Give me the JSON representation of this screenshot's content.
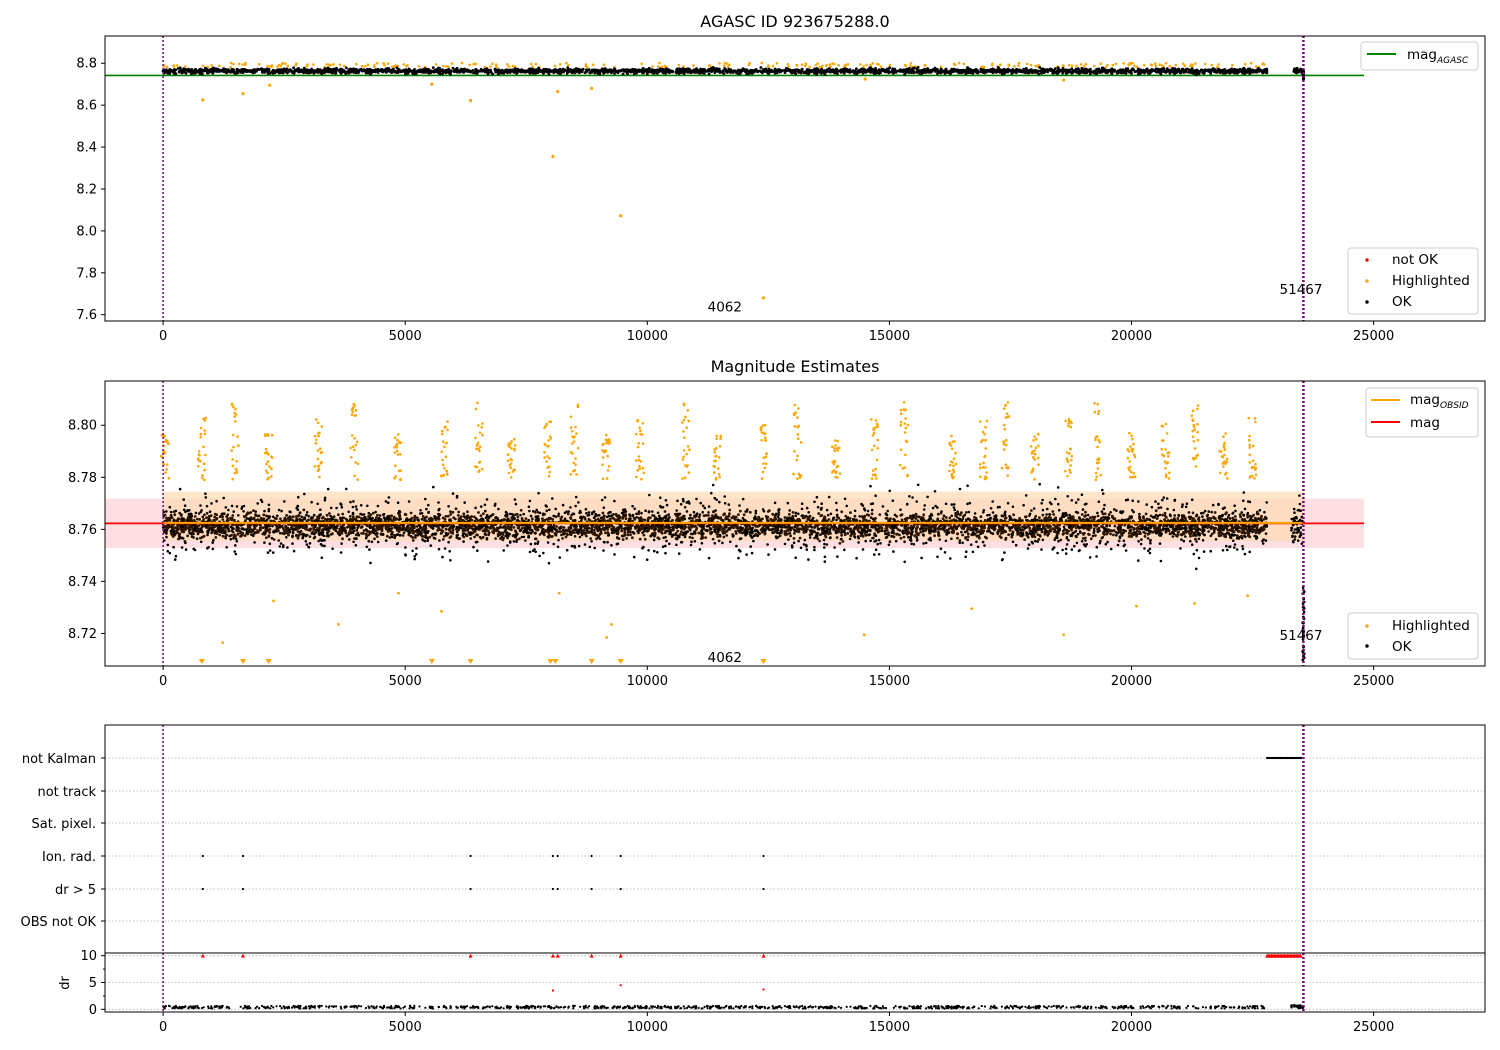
{
  "colors": {
    "ok": "#000000",
    "highlighted": "#ffa500",
    "not_ok": "#ff0000",
    "mag_agasc_line": "#008000",
    "mag_obsid_line": "#ffa500",
    "mag_line": "#ff0000",
    "vline": "#800080",
    "band_obsid": "#ffdcb4",
    "band_mag": "#ffd7dc"
  },
  "chart_data": [
    {
      "type": "scatter",
      "title": "AGASC ID 923675288.0",
      "xlim": [
        -1200,
        27300
      ],
      "ylim": [
        7.57,
        8.93
      ],
      "xticks": [
        0,
        5000,
        10000,
        15000,
        20000,
        25000
      ],
      "yticks": [
        7.6,
        7.8,
        8.0,
        8.2,
        8.4,
        8.6,
        8.8
      ],
      "x_tick_labels": [
        "0",
        "5000",
        "10000",
        "15000",
        "20000",
        "25000"
      ],
      "y_tick_labels": [
        "7.6",
        "7.8",
        "8.0",
        "8.2",
        "8.4",
        "8.6",
        "8.8"
      ],
      "reference_line": {
        "name": "mag",
        "subscript": "AGASC",
        "value": 8.742,
        "x_range": [
          -1200,
          24800
        ]
      },
      "vlines": [
        0,
        23550
      ],
      "annotations": [
        {
          "text": "4062",
          "x": 11600,
          "y": 7.6
        },
        {
          "text": "51467",
          "x": 23500,
          "y": 7.7
        }
      ],
      "legend_upper": {
        "placement": "upper-right",
        "entries": [
          "mag"
        ]
      },
      "legend_lower": {
        "placement": "lower-right",
        "entries": [
          "not OK",
          "Highlighted",
          "OK"
        ]
      },
      "ok_band": {
        "center": 8.763,
        "spread": 0.012,
        "x_ranges": [
          [
            0,
            22800
          ],
          [
            22800,
            23550
          ]
        ]
      },
      "highlighted_points": [
        {
          "x": 820,
          "y": 8.625
        },
        {
          "x": 1650,
          "y": 8.655
        },
        {
          "x": 2200,
          "y": 8.695
        },
        {
          "x": 5550,
          "y": 8.7
        },
        {
          "x": 6350,
          "y": 8.622
        },
        {
          "x": 8050,
          "y": 8.355
        },
        {
          "x": 8150,
          "y": 8.665
        },
        {
          "x": 8850,
          "y": 8.68
        },
        {
          "x": 9450,
          "y": 8.072
        },
        {
          "x": 12400,
          "y": 7.68
        },
        {
          "x": 14500,
          "y": 8.725
        },
        {
          "x": 18600,
          "y": 8.72
        }
      ]
    },
    {
      "type": "scatter",
      "title": "Magnitude Estimates",
      "xlim": [
        -1200,
        27300
      ],
      "ylim": [
        8.7075,
        8.817
      ],
      "xticks": [
        0,
        5000,
        10000,
        15000,
        20000,
        25000
      ],
      "yticks": [
        8.72,
        8.74,
        8.76,
        8.78,
        8.8
      ],
      "x_tick_labels": [
        "0",
        "5000",
        "10000",
        "15000",
        "20000",
        "25000"
      ],
      "y_tick_labels": [
        "8.72",
        "8.74",
        "8.76",
        "8.78",
        "8.80"
      ],
      "mag_obsid": {
        "name": "mag",
        "subscript": "OBSID",
        "value": 8.7625,
        "band": [
          8.7555,
          8.7745
        ],
        "x_range": [
          0,
          23550
        ]
      },
      "mag": {
        "name": "mag",
        "value": 8.7623,
        "band": [
          8.7528,
          8.7718
        ],
        "x_range": [
          -1200,
          24800
        ]
      },
      "vlines": [
        0,
        23550
      ],
      "annotations": [
        {
          "text": "4062",
          "x": 11600,
          "y": 8.711
        },
        {
          "text": "51467",
          "x": 23500,
          "y": 8.7195
        }
      ],
      "legend_upper": {
        "placement": "upper-right",
        "entries": [
          "mag",
          "mag"
        ]
      },
      "legend_lower": {
        "placement": "lower-right",
        "entries": [
          "Highlighted",
          "OK"
        ]
      },
      "ok_band": {
        "center": 8.7615,
        "core_spread": 0.0045,
        "outer_spread": 0.011,
        "x_ranges": [
          [
            0,
            22800
          ],
          [
            22800,
            23550
          ]
        ]
      },
      "highlighted_peaks_x": [
        40,
        800,
        1480,
        2180,
        3200,
        3950,
        4850,
        5800,
        6520,
        7200,
        7950,
        8500,
        9150,
        9850,
        10800,
        11450,
        12400,
        13100,
        13900,
        14700,
        15300,
        16300,
        16950,
        17400,
        18000,
        18700,
        19300,
        20000,
        20700,
        21300,
        21900,
        22500
      ],
      "highlighted_low_points": [
        {
          "x": 1230,
          "y": 8.7165
        },
        {
          "x": 2280,
          "y": 8.7325
        },
        {
          "x": 3620,
          "y": 8.7235
        },
        {
          "x": 4860,
          "y": 8.7355
        },
        {
          "x": 5750,
          "y": 8.7285
        },
        {
          "x": 8180,
          "y": 8.7355
        },
        {
          "x": 9160,
          "y": 8.7185
        },
        {
          "x": 9260,
          "y": 8.7235
        },
        {
          "x": 14480,
          "y": 8.7195
        },
        {
          "x": 16700,
          "y": 8.7295
        },
        {
          "x": 18600,
          "y": 8.7195
        },
        {
          "x": 20100,
          "y": 8.7305
        },
        {
          "x": 21300,
          "y": 8.7315
        },
        {
          "x": 22400,
          "y": 8.7345
        }
      ],
      "off_scale_markers_x": [
        800,
        1650,
        2180,
        5550,
        6350,
        8000,
        8100,
        8850,
        9450,
        12400
      ]
    },
    {
      "type": "scatter",
      "title": "",
      "xlim": [
        -1200,
        27300
      ],
      "xticks": [
        0,
        5000,
        10000,
        15000,
        20000,
        25000
      ],
      "x_tick_labels": [
        "0",
        "5000",
        "10000",
        "15000",
        "20000",
        "25000"
      ],
      "category_rows": [
        "not Kalman",
        "not track",
        "Sat. pixel.",
        "Ion. rad.",
        "dr > 5",
        "OBS not OK"
      ],
      "flag_points": {
        "not Kalman": {
          "x_range": [
            22800,
            23500
          ]
        },
        "Ion. rad.": {
          "x": [
            820,
            1650,
            6350,
            8050,
            8150,
            8850,
            9450,
            12400
          ]
        },
        "dr > 5": {
          "x": [
            820,
            1650,
            6350,
            8050,
            8150,
            8850,
            9450,
            12400
          ]
        }
      },
      "dr_panel": {
        "ylabel": "dr",
        "ylim": [
          -0.5,
          10.5
        ],
        "yticks": [
          0,
          5,
          10
        ],
        "y_tick_labels": [
          "0",
          "5",
          "10"
        ],
        "capped_points_x": [
          820,
          1650,
          6350,
          8050,
          8150,
          8850,
          9450,
          12400
        ],
        "capped_range_x": [
          22800,
          23500
        ],
        "mid_points": [
          {
            "x": 8050,
            "y": 3.5
          },
          {
            "x": 9450,
            "y": 4.5
          },
          {
            "x": 12400,
            "y": 3.7
          }
        ]
      },
      "vlines": [
        0,
        23550
      ]
    }
  ]
}
